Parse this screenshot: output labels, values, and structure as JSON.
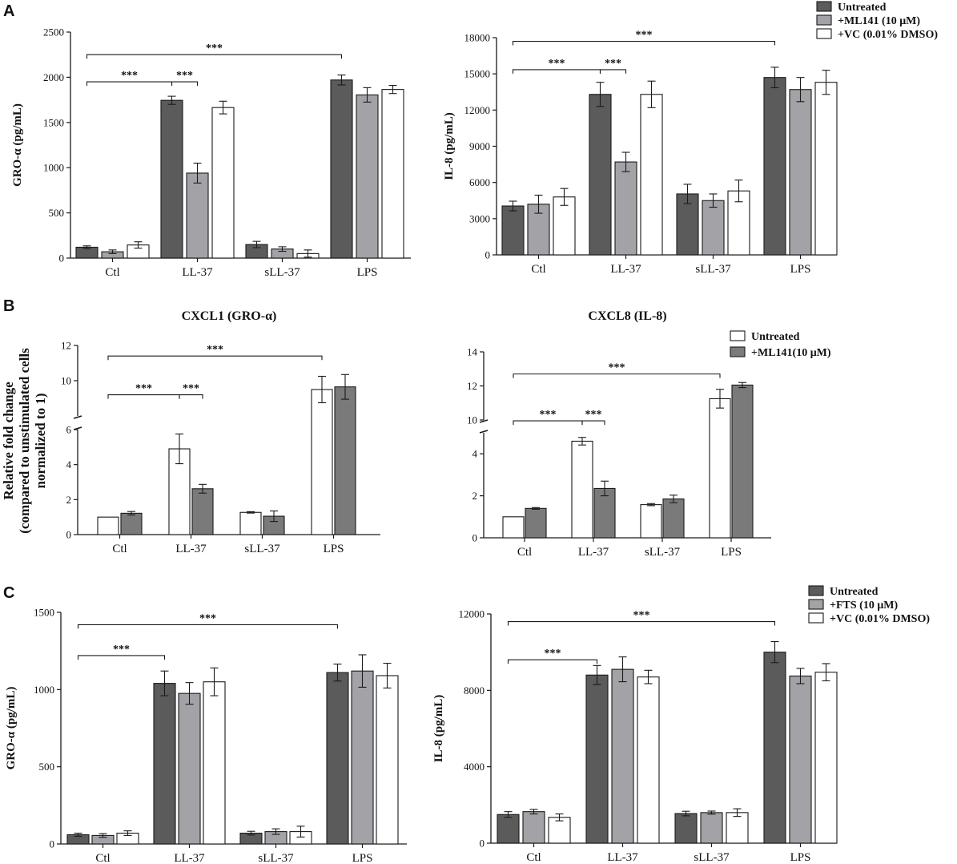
{
  "colors": {
    "untreated_dark": "#5b5b5b",
    "treated_gray": "#a2a2a7",
    "vc_white": "#ffffff",
    "white_bar": "#ffffff",
    "ml141_gray": "#7a7a7a",
    "stroke": "#1a1a1a"
  },
  "panels": {
    "A": "A",
    "B": "B",
    "C": "C"
  },
  "panel_B_ylabel": {
    "line1": "Relative fold change",
    "line2": "(compared to unstimulated cells",
    "line3": "normalized to 1)"
  },
  "legends": {
    "A": [
      "Untreated",
      "+ML141 (10 μM)",
      "+VC (0.01% DMSO)"
    ],
    "B": [
      "Untreated",
      "+ML141(10 μM)"
    ],
    "C": [
      "Untreated",
      "+FTS (10 μM)",
      "+VC (0.01% DMSO)"
    ]
  },
  "chart_data": [
    {
      "id": "A-left",
      "type": "bar",
      "title": "",
      "xlabel": "",
      "ylabel": "GRO-α (pg/mL)",
      "categories": [
        "Ctl",
        "LL-37",
        "sLL-37",
        "LPS"
      ],
      "ylim": [
        0,
        2500
      ],
      "yticks": [
        0,
        500,
        1000,
        1500,
        2000,
        2500
      ],
      "series": [
        {
          "name": "Untreated",
          "values": [
            120,
            1745,
            150,
            1970
          ],
          "errors": [
            15,
            45,
            35,
            55
          ]
        },
        {
          "name": "+ML141 (10 μM)",
          "values": [
            70,
            940,
            100,
            1805
          ],
          "errors": [
            20,
            110,
            25,
            80
          ]
        },
        {
          "name": "+VC (0.01% DMSO)",
          "values": [
            145,
            1665,
            50,
            1865
          ],
          "errors": [
            35,
            70,
            40,
            45
          ]
        }
      ],
      "significance": [
        {
          "label": "***",
          "from": [
            0,
            0
          ],
          "to": [
            1,
            0
          ],
          "level": 1950
        },
        {
          "label": "***",
          "from": [
            1,
            0
          ],
          "to": [
            1,
            1
          ],
          "level": 1950
        },
        {
          "label": "***",
          "from": [
            0,
            0
          ],
          "to": [
            3,
            0
          ],
          "level": 2250
        }
      ]
    },
    {
      "id": "A-right",
      "type": "bar",
      "title": "",
      "xlabel": "",
      "ylabel": "IL-8 (pg/mL)",
      "categories": [
        "Ctl",
        "LL-37",
        "sLL-37",
        "LPS"
      ],
      "ylim": [
        0,
        18000
      ],
      "yticks": [
        0,
        3000,
        6000,
        9000,
        12000,
        15000,
        18000
      ],
      "series": [
        {
          "name": "Untreated",
          "values": [
            4050,
            13300,
            5050,
            14700
          ],
          "errors": [
            400,
            1000,
            800,
            850
          ]
        },
        {
          "name": "+ML141 (10 μM)",
          "values": [
            4200,
            7700,
            4500,
            13700
          ],
          "errors": [
            750,
            800,
            550,
            1000
          ]
        },
        {
          "name": "+VC (0.01% DMSO)",
          "values": [
            4800,
            13300,
            5300,
            14300
          ],
          "errors": [
            700,
            1100,
            900,
            1000
          ]
        }
      ],
      "significance": [
        {
          "label": "***",
          "from": [
            0,
            0
          ],
          "to": [
            1,
            0
          ],
          "level": 15350
        },
        {
          "label": "***",
          "from": [
            1,
            0
          ],
          "to": [
            1,
            1
          ],
          "level": 15350
        },
        {
          "label": "***",
          "from": [
            0,
            0
          ],
          "to": [
            3,
            0
          ],
          "level": 17700
        }
      ]
    },
    {
      "id": "B-left",
      "type": "bar",
      "title": "CXCL1 (GRO-α)",
      "xlabel": "",
      "ylabel": "Relative fold change (compared to unstimulated cells normalized to 1)",
      "categories": [
        "Ctl",
        "LL-37",
        "sLL-37",
        "LPS"
      ],
      "ylim": [
        0,
        12
      ],
      "axis_break": [
        6,
        8
      ],
      "yticks": [
        0,
        2,
        4,
        6,
        10,
        12
      ],
      "series": [
        {
          "name": "Untreated",
          "values": [
            1.0,
            4.9,
            1.27,
            9.5
          ],
          "errors": [
            0,
            0.85,
            0.04,
            0.75
          ]
        },
        {
          "name": "+ML141(10 μM)",
          "values": [
            1.22,
            2.62,
            1.05,
            9.65
          ],
          "errors": [
            0.1,
            0.25,
            0.3,
            0.7
          ]
        }
      ],
      "significance": [
        {
          "label": "***",
          "from": [
            0,
            0
          ],
          "to": [
            1,
            0
          ],
          "level": 9.2
        },
        {
          "label": "***",
          "from": [
            1,
            0
          ],
          "to": [
            1,
            1
          ],
          "level": 9.2
        },
        {
          "label": "***",
          "from": [
            0,
            0
          ],
          "to": [
            3,
            0
          ],
          "level": 11.4
        }
      ]
    },
    {
      "id": "B-right",
      "type": "bar",
      "title": "CXCL8 (IL-8)",
      "xlabel": "",
      "ylabel": "",
      "categories": [
        "Ctl",
        "LL-37",
        "sLL-37",
        "LPS"
      ],
      "ylim": [
        0,
        14
      ],
      "axis_break": [
        5,
        10
      ],
      "yticks": [
        0,
        2,
        4,
        10,
        12,
        14
      ],
      "series": [
        {
          "name": "Untreated",
          "values": [
            1.0,
            4.6,
            1.58,
            11.25
          ],
          "errors": [
            0,
            0.18,
            0.05,
            0.55
          ]
        },
        {
          "name": "+ML141(10 μM)",
          "values": [
            1.4,
            2.35,
            1.85,
            12.05
          ],
          "errors": [
            0.04,
            0.35,
            0.18,
            0.15
          ]
        }
      ],
      "significance": [
        {
          "label": "***",
          "from": [
            0,
            0
          ],
          "to": [
            1,
            0
          ],
          "level": 9.95
        },
        {
          "label": "***",
          "from": [
            1,
            0
          ],
          "to": [
            1,
            1
          ],
          "level": 9.95
        },
        {
          "label": "***",
          "from": [
            0,
            0
          ],
          "to": [
            3,
            0
          ],
          "level": 12.7
        }
      ]
    },
    {
      "id": "C-left",
      "type": "bar",
      "title": "",
      "xlabel": "",
      "ylabel": "GRO-α (pg/mL)",
      "categories": [
        "Ctl",
        "LL-37",
        "sLL-37",
        "LPS"
      ],
      "ylim": [
        0,
        1500
      ],
      "yticks": [
        0,
        500,
        1000,
        1500
      ],
      "series": [
        {
          "name": "Untreated",
          "values": [
            60,
            1040,
            70,
            1110
          ],
          "errors": [
            10,
            80,
            12,
            55
          ]
        },
        {
          "name": "+FTS (10 μM)",
          "values": [
            55,
            975,
            80,
            1120
          ],
          "errors": [
            12,
            70,
            18,
            105
          ]
        },
        {
          "name": "+VC (0.01% DMSO)",
          "values": [
            70,
            1050,
            80,
            1090
          ],
          "errors": [
            15,
            90,
            35,
            80
          ]
        }
      ],
      "significance": [
        {
          "label": "***",
          "from": [
            0,
            0
          ],
          "to": [
            1,
            0
          ],
          "level": 1220
        },
        {
          "label": "***",
          "from": [
            0,
            0
          ],
          "to": [
            3,
            0
          ],
          "level": 1420
        }
      ]
    },
    {
      "id": "C-right",
      "type": "bar",
      "title": "",
      "xlabel": "",
      "ylabel": "IL-8 (pg/mL)",
      "categories": [
        "Ctl",
        "LL-37",
        "sLL-37",
        "LPS"
      ],
      "ylim": [
        0,
        12000
      ],
      "yticks": [
        0,
        4000,
        8000,
        12000
      ],
      "series": [
        {
          "name": "Untreated",
          "values": [
            1500,
            8800,
            1550,
            10000
          ],
          "errors": [
            150,
            500,
            120,
            550
          ]
        },
        {
          "name": "+FTS (10 μM)",
          "values": [
            1650,
            9100,
            1600,
            8750
          ],
          "errors": [
            120,
            650,
            80,
            400
          ]
        },
        {
          "name": "+VC (0.01% DMSO)",
          "values": [
            1350,
            8700,
            1600,
            8950
          ],
          "errors": [
            180,
            350,
            200,
            450
          ]
        }
      ],
      "significance": [
        {
          "label": "***",
          "from": [
            0,
            0
          ],
          "to": [
            1,
            0
          ],
          "level": 9600
        },
        {
          "label": "***",
          "from": [
            0,
            0
          ],
          "to": [
            3,
            0
          ],
          "level": 11600
        }
      ]
    }
  ]
}
